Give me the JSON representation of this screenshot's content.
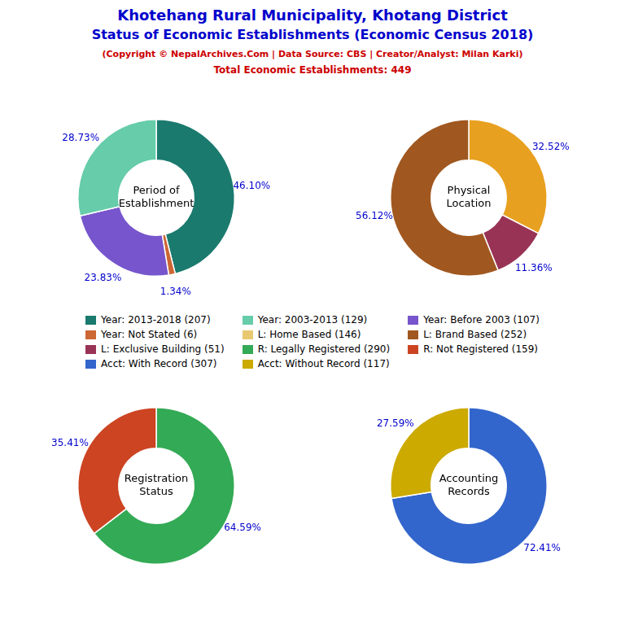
{
  "title": {
    "text": [
      "Khotehang Rural Municipality, Khotang District",
      "Status of Economic Establishments (Economic Census 2018)"
    ],
    "color": "#0000CC"
  },
  "subtitle": {
    "text": [
      "(Copyright © NepalArchives.Com | Data Source: CBS | Creator/Analyst: Milan Karki)",
      "Total Economic Establishments: 449"
    ],
    "color": "#CC0000"
  },
  "label_color": "#0000CC",
  "series": [
    {
      "name": "Year: 2013-2018 (207)",
      "color": "#1a7a6e"
    },
    {
      "name": "Year: 2003-2013 (129)",
      "color": "#66ccaa"
    },
    {
      "name": "Year: Before 2003 (107)",
      "color": "#7755cc"
    },
    {
      "name": "Year: Not Stated (6)",
      "color": "#cc6633"
    },
    {
      "name": "L: Home Based (146)",
      "color": "#e8c870"
    },
    {
      "name": "L: Brand Based (252)",
      "color": "#a05820"
    },
    {
      "name": "L: Exclusive Building (51)",
      "color": "#993355"
    },
    {
      "name": "R: Legally Registered (290)",
      "color": "#33aa55"
    },
    {
      "name": "R: Not Registered (159)",
      "color": "#cc4422"
    },
    {
      "name": "Acct: With Record (307)",
      "color": "#3366cc"
    },
    {
      "name": "Acct: Without Record (117)",
      "color": "#ccaa00"
    }
  ],
  "chart_data": [
    {
      "type": "doughnut",
      "title": "Period of\nEstablishment",
      "values": [
        46.1,
        1.34,
        23.83,
        28.73
      ],
      "value_labels": [
        "46.10%",
        "1.34%",
        "23.83%",
        "28.73%"
      ],
      "colors": [
        "#1a7a6e",
        "#cc6633",
        "#7755cc",
        "#66ccaa"
      ],
      "data_labels": true
    },
    {
      "type": "doughnut",
      "title": "Physical\nLocation",
      "values": [
        32.52,
        11.36,
        56.12
      ],
      "value_labels": [
        "32.52%",
        "11.36%",
        "56.12%"
      ],
      "colors": [
        "#e8a020",
        "#993355",
        "#a05820"
      ],
      "data_labels": true
    },
    {
      "type": "doughnut",
      "title": "Registration\nStatus",
      "values": [
        64.59,
        35.41
      ],
      "value_labels": [
        "64.59%",
        "35.41%"
      ],
      "colors": [
        "#33aa55",
        "#cc4422"
      ],
      "data_labels": true
    },
    {
      "type": "doughnut",
      "title": "Accounting\nRecords",
      "values": [
        72.41,
        27.59
      ],
      "value_labels": [
        "72.41%",
        "27.59%"
      ],
      "colors": [
        "#3366cc",
        "#ccaa00"
      ],
      "data_labels": true
    }
  ]
}
